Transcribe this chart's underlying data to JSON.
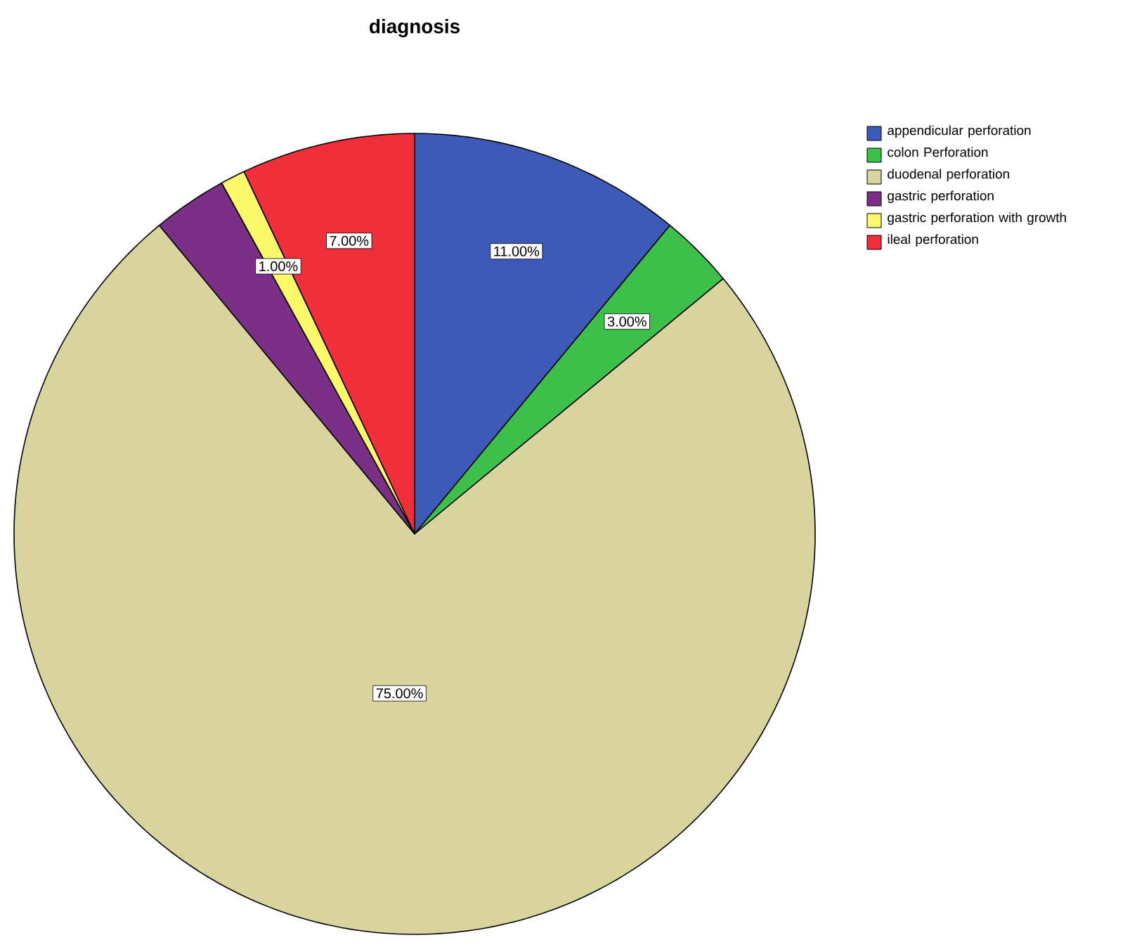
{
  "chart_data": {
    "type": "pie",
    "title": "diagnosis",
    "categories": [
      "appendicular perforation",
      "colon Perforation",
      "duodenal perforation",
      "gastric perforation",
      "gastric perforation with growth",
      "ileal perforation"
    ],
    "values": [
      11,
      3,
      75,
      3,
      1,
      7
    ],
    "colors": [
      "#3d5ab8",
      "#3cc04a",
      "#d9d39e",
      "#7b2f86",
      "#fbf96a",
      "#f02f3b"
    ],
    "value_labels": [
      "11.00%",
      "3.00%",
      "75.00%",
      null,
      "1.00%",
      "7.00%"
    ],
    "legend": "top right"
  }
}
